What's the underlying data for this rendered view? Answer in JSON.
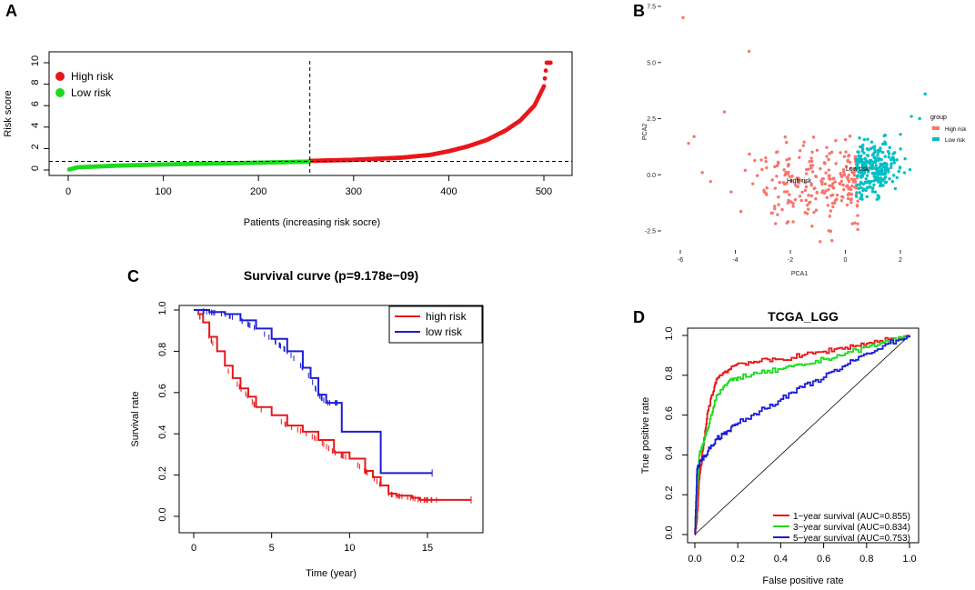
{
  "panel_labels": {
    "a": "A",
    "b": "B",
    "c": "C",
    "d": "D"
  },
  "chart_data": [
    {
      "type": "scatter",
      "panel": "A",
      "xlabel": "Patients (increasing risk socre)",
      "ylabel": "Risk score",
      "xlim": [
        0,
        510
      ],
      "ylim": [
        0,
        10
      ],
      "xticks": [
        0,
        100,
        200,
        300,
        400,
        500
      ],
      "yticks": [
        0,
        2,
        4,
        6,
        8,
        10
      ],
      "cutoff_patient": 254,
      "cutoff_score": 0.8,
      "series": [
        {
          "name": "High risk",
          "color": "#e8171a",
          "x_start": 254,
          "x_end": 507,
          "curve": [
            [
              254,
              0.85
            ],
            [
              300,
              0.95
            ],
            [
              350,
              1.15
            ],
            [
              380,
              1.4
            ],
            [
              400,
              1.75
            ],
            [
              420,
              2.2
            ],
            [
              440,
              2.8
            ],
            [
              460,
              3.7
            ],
            [
              475,
              4.6
            ],
            [
              490,
              6.0
            ],
            [
              500,
              7.8
            ],
            [
              503,
              10.0
            ],
            [
              507,
              10.0
            ]
          ]
        },
        {
          "name": "Low risk",
          "color": "#1ed91e",
          "x_start": 1,
          "x_end": 253,
          "curve": [
            [
              1,
              0.05
            ],
            [
              10,
              0.25
            ],
            [
              50,
              0.4
            ],
            [
              100,
              0.52
            ],
            [
              150,
              0.6
            ],
            [
              200,
              0.68
            ],
            [
              253,
              0.78
            ]
          ]
        }
      ]
    },
    {
      "type": "scatter",
      "panel": "B",
      "xlabel": "PCA1",
      "ylabel": "PCA2",
      "xlim": [
        -6.2,
        3.4
      ],
      "ylim": [
        -3.3,
        7.6
      ],
      "xticks": [
        "-6",
        "-4",
        "-2",
        "0",
        "2"
      ],
      "yticks": [
        "-2.5",
        "0.0",
        "2.5",
        "5.0",
        "7.5"
      ],
      "legend_title": "group",
      "groups": [
        {
          "name": "High risk",
          "color": "#f8766d",
          "label_at": [
            -1.6,
            -0.5
          ],
          "n": 255,
          "outliers": [
            [
              -5.9,
              7.0
            ],
            [
              -3.5,
              5.5
            ],
            [
              -4.4,
              2.8
            ],
            [
              -5.5,
              1.7
            ],
            [
              -5.7,
              1.4
            ],
            [
              -5.2,
              0.1
            ],
            [
              -4.9,
              -0.3
            ]
          ]
        },
        {
          "name": "Low risk",
          "color": "#00bfc4",
          "label_at": [
            1.3,
            0.6
          ],
          "n": 255,
          "outliers": [
            [
              2.9,
              3.6
            ],
            [
              2.7,
              2.5
            ],
            [
              3.2,
              2.1
            ],
            [
              2.4,
              2.6
            ],
            [
              2.0,
              1.8
            ]
          ]
        }
      ]
    },
    {
      "type": "line",
      "panel": "C",
      "title": "Survival curve (p=9.178e−09)",
      "xlabel": "Time (year)",
      "ylabel": "Survival rate",
      "xlim": [
        -0.5,
        18.3
      ],
      "ylim": [
        -0.04,
        1.04
      ],
      "xticks": [
        0,
        5,
        10,
        15
      ],
      "yticks": [
        "0.0",
        "0.2",
        "0.4",
        "0.6",
        "0.8",
        "1.0"
      ],
      "series": [
        {
          "name": "high risk",
          "color": "#e8171a",
          "points": [
            [
              0,
              1.0
            ],
            [
              0.3,
              0.98
            ],
            [
              0.6,
              0.94
            ],
            [
              1,
              0.87
            ],
            [
              1.5,
              0.8
            ],
            [
              2,
              0.73
            ],
            [
              2.5,
              0.67
            ],
            [
              3,
              0.62
            ],
            [
              3.5,
              0.58
            ],
            [
              4,
              0.53
            ],
            [
              5,
              0.49
            ],
            [
              6,
              0.44
            ],
            [
              7,
              0.41
            ],
            [
              8,
              0.37
            ],
            [
              9,
              0.31
            ],
            [
              10,
              0.28
            ],
            [
              11,
              0.22
            ],
            [
              11.5,
              0.19
            ],
            [
              12,
              0.15
            ],
            [
              12.5,
              0.11
            ],
            [
              13,
              0.1
            ],
            [
              14,
              0.09
            ],
            [
              14.5,
              0.08
            ],
            [
              17.8,
              0.08
            ]
          ]
        },
        {
          "name": "low risk",
          "color": "#1d1dd4",
          "points": [
            [
              0,
              1.0
            ],
            [
              1,
              0.99
            ],
            [
              2,
              0.98
            ],
            [
              3,
              0.95
            ],
            [
              4,
              0.91
            ],
            [
              5,
              0.86
            ],
            [
              6,
              0.8
            ],
            [
              7,
              0.72
            ],
            [
              7.5,
              0.67
            ],
            [
              8,
              0.59
            ],
            [
              8.5,
              0.55
            ],
            [
              9.5,
              0.55
            ],
            [
              9.5,
              0.41
            ],
            [
              12,
              0.41
            ],
            [
              12,
              0.21
            ],
            [
              15.3,
              0.21
            ]
          ]
        }
      ]
    },
    {
      "type": "line",
      "panel": "D",
      "title": "TCGA_LGG",
      "xlabel": "False positive rate",
      "ylabel": "True positive rate",
      "xlim": [
        -0.04,
        1.04
      ],
      "ylim": [
        -0.04,
        1.04
      ],
      "xticks": [
        "0.0",
        "0.2",
        "0.4",
        "0.6",
        "0.8",
        "1.0"
      ],
      "yticks": [
        "0.0",
        "0.2",
        "0.4",
        "0.6",
        "0.8",
        "1.0"
      ],
      "series": [
        {
          "name": "1−year survival (AUC=0.855)",
          "color": "#e8171a",
          "points": [
            [
              0,
              0
            ],
            [
              0.01,
              0.08
            ],
            [
              0.02,
              0.28
            ],
            [
              0.04,
              0.45
            ],
            [
              0.06,
              0.62
            ],
            [
              0.08,
              0.7
            ],
            [
              0.1,
              0.78
            ],
            [
              0.14,
              0.82
            ],
            [
              0.2,
              0.86
            ],
            [
              0.3,
              0.87
            ],
            [
              0.4,
              0.88
            ],
            [
              0.5,
              0.9
            ],
            [
              0.6,
              0.92
            ],
            [
              0.7,
              0.94
            ],
            [
              0.8,
              0.96
            ],
            [
              0.9,
              0.98
            ],
            [
              1,
              1
            ]
          ]
        },
        {
          "name": "3−year survival (AUC=0.834)",
          "color": "#1ed91e",
          "points": [
            [
              0,
              0
            ],
            [
              0.01,
              0.2
            ],
            [
              0.02,
              0.4
            ],
            [
              0.04,
              0.46
            ],
            [
              0.07,
              0.58
            ],
            [
              0.1,
              0.7
            ],
            [
              0.15,
              0.76
            ],
            [
              0.2,
              0.79
            ],
            [
              0.3,
              0.81
            ],
            [
              0.4,
              0.83
            ],
            [
              0.5,
              0.85
            ],
            [
              0.6,
              0.88
            ],
            [
              0.7,
              0.91
            ],
            [
              0.8,
              0.94
            ],
            [
              0.9,
              0.97
            ],
            [
              1,
              1
            ]
          ]
        },
        {
          "name": "5−year survival (AUC=0.753)",
          "color": "#1d1dd4",
          "points": [
            [
              0,
              0
            ],
            [
              0.01,
              0.33
            ],
            [
              0.03,
              0.37
            ],
            [
              0.06,
              0.42
            ],
            [
              0.1,
              0.48
            ],
            [
              0.15,
              0.52
            ],
            [
              0.2,
              0.56
            ],
            [
              0.3,
              0.62
            ],
            [
              0.4,
              0.68
            ],
            [
              0.5,
              0.74
            ],
            [
              0.6,
              0.79
            ],
            [
              0.7,
              0.85
            ],
            [
              0.8,
              0.91
            ],
            [
              0.9,
              0.96
            ],
            [
              1,
              1
            ]
          ]
        }
      ]
    }
  ]
}
